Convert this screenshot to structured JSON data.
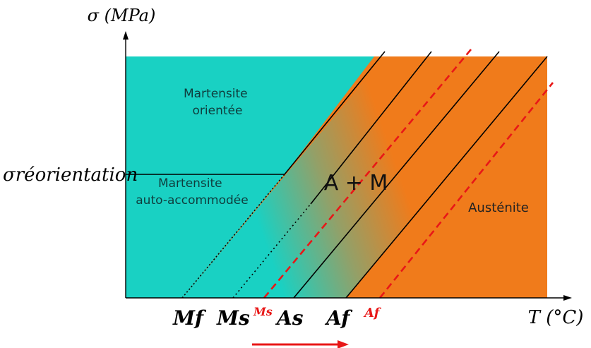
{
  "axes": {
    "y_label": "σ (MPa)",
    "x_label": "T (°C)",
    "y_tick": "σréorientation"
  },
  "regions": {
    "oriented_martensite": [
      "Martensite",
      "orientée"
    ],
    "self_accommodated_martensite": [
      "Martensite",
      "auto-accommodée"
    ],
    "mixed": "A + M",
    "austenite": "Austénite"
  },
  "temperatures": {
    "Mf": "Mf",
    "Ms": "Ms",
    "As": "As",
    "Af": "Af",
    "Ms_shifted": "Ms",
    "Af_shifted": "Af"
  },
  "colors": {
    "martensite": "#19d1c3",
    "austenite": "#f07b1b",
    "shift": "#e81717",
    "line": "#000000"
  }
}
